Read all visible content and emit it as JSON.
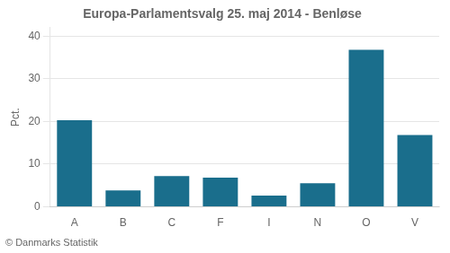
{
  "chart_data": {
    "type": "bar",
    "title": "Europa-Parlamentsvalg 25. maj 2014 - Benløse",
    "ylabel": "Pct.",
    "annotations": [
      "© Danmarks Statistik"
    ],
    "categories": [
      "A",
      "B",
      "C",
      "F",
      "I",
      "N",
      "O",
      "V"
    ],
    "values": [
      20.3,
      3.8,
      7.2,
      6.8,
      2.6,
      5.5,
      36.8,
      16.8
    ],
    "color": "#1a6e8c",
    "ylim": [
      0,
      42
    ],
    "yticks": [
      0,
      10,
      20,
      30,
      40
    ],
    "grid": true
  }
}
